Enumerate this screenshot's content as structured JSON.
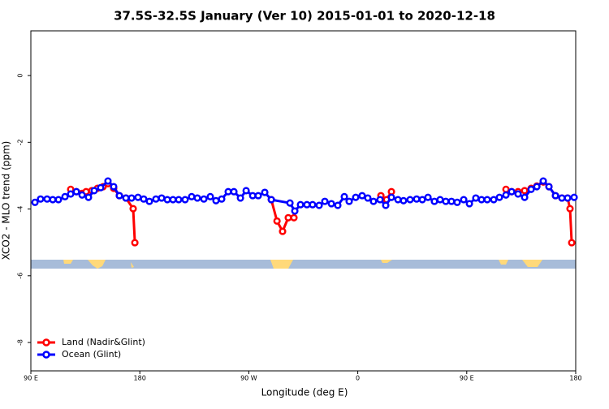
{
  "chart_data": {
    "type": "line",
    "title": "37.5S-32.5S January (Ver 10)   2015-01-01 to 2020-12-18",
    "x_label": "Longitude (deg E)",
    "y_label": "XCO2 - MLO trend (ppm)",
    "xlim": [
      90,
      540
    ],
    "ylim": [
      -8.85,
      1.34
    ],
    "xticks": [
      {
        "value": 90,
        "label": "90 E"
      },
      180,
      {
        "value": 270,
        "label": "90 W"
      },
      {
        "value": 360,
        "label": "0"
      },
      {
        "value": 450,
        "label": "90 E"
      },
      {
        "value": 540,
        "label": "180"
      }
    ],
    "yticks": [
      -8,
      -6,
      -4,
      -2,
      0
    ],
    "legend": "bottom-left",
    "series": [
      {
        "name": "Land (Nadir&Glint)",
        "color": "#ff0000",
        "x": [
          122.9,
          127.6,
          132.3,
          135.6,
          140.3,
          145.0,
          149.7,
          153.7,
          158.4,
          163.1,
          168.5,
          174.5,
          175.9,
          null,
          288.6,
          293.3,
          297.9,
          302.6,
          307.3,
          null,
          379.1,
          383.8,
          387.8,
          null,
          482.4,
          487.1,
          492.4,
          497.8,
          503.2,
          507.9,
          513.2,
          517.9,
          523.3,
          528.6,
          533.3,
          535.3,
          536.7
        ],
        "values": [
          -3.41,
          -3.48,
          -3.53,
          -3.48,
          -3.45,
          -3.38,
          -3.33,
          -3.24,
          -3.38,
          -3.6,
          -3.67,
          -3.99,
          -5.01,
          null,
          -3.72,
          -4.36,
          -4.67,
          -4.26,
          -4.26,
          null,
          -3.6,
          -3.72,
          -3.48,
          null,
          -3.41,
          -3.48,
          -3.48,
          -3.45,
          -3.38,
          -3.31,
          -3.19,
          -3.33,
          -3.6,
          -3.67,
          -3.67,
          -3.99,
          -5.01
        ]
      },
      {
        "name": "Ocean (Glint)",
        "color": "#0000ff",
        "x": [
          93.4,
          98.0,
          103.4,
          108.1,
          112.8,
          118.2,
          122.9,
          127.6,
          132.3,
          137.6,
          142.3,
          147.7,
          153.7,
          158.4,
          163.1,
          168.5,
          173.2,
          178.5,
          183.2,
          187.9,
          193.3,
          198.0,
          202.7,
          207.4,
          212.1,
          217.4,
          222.8,
          227.5,
          232.9,
          238.2,
          242.9,
          247.6,
          253.0,
          257.7,
          263.1,
          267.8,
          273.2,
          277.8,
          283.2,
          288.6,
          304.0,
          308.0,
          312.7,
          318.0,
          322.7,
          328.1,
          332.8,
          338.2,
          343.5,
          348.9,
          352.9,
          358.3,
          363.6,
          368.3,
          373.0,
          378.4,
          383.1,
          387.8,
          393.2,
          397.8,
          403.2,
          408.6,
          413.3,
          418.0,
          423.3,
          428.0,
          432.7,
          437.4,
          442.1,
          447.5,
          452.2,
          457.5,
          462.2,
          466.9,
          472.3,
          477.0,
          482.4,
          487.1,
          492.4,
          497.8,
          503.2,
          507.9,
          513.2,
          517.9,
          523.3,
          528.6,
          533.3,
          538.7
        ],
        "values": [
          -3.8,
          -3.7,
          -3.7,
          -3.72,
          -3.72,
          -3.63,
          -3.55,
          -3.48,
          -3.58,
          -3.65,
          -3.45,
          -3.36,
          -3.16,
          -3.33,
          -3.6,
          -3.67,
          -3.67,
          -3.65,
          -3.7,
          -3.77,
          -3.7,
          -3.67,
          -3.72,
          -3.72,
          -3.72,
          -3.72,
          -3.63,
          -3.67,
          -3.7,
          -3.63,
          -3.75,
          -3.7,
          -3.48,
          -3.48,
          -3.67,
          -3.45,
          -3.6,
          -3.6,
          -3.5,
          -3.72,
          -3.82,
          -4.06,
          -3.87,
          -3.87,
          -3.87,
          -3.89,
          -3.77,
          -3.84,
          -3.89,
          -3.63,
          -3.77,
          -3.65,
          -3.6,
          -3.67,
          -3.77,
          -3.72,
          -3.89,
          -3.65,
          -3.72,
          -3.75,
          -3.72,
          -3.7,
          -3.72,
          -3.65,
          -3.77,
          -3.72,
          -3.77,
          -3.77,
          -3.8,
          -3.72,
          -3.84,
          -3.67,
          -3.72,
          -3.72,
          -3.72,
          -3.65,
          -3.58,
          -3.48,
          -3.55,
          -3.65,
          -3.41,
          -3.33,
          -3.16,
          -3.33,
          -3.6,
          -3.67,
          -3.67,
          -3.65
        ]
      }
    ]
  }
}
